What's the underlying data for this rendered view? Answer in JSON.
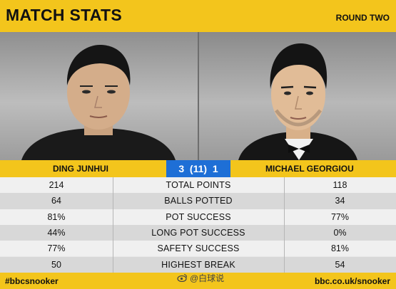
{
  "header": {
    "title": "MATCH STATS",
    "round": "ROUND TWO"
  },
  "players": {
    "left": {
      "name": "DING JUNHUI"
    },
    "right": {
      "name": "MICHAEL GEORGIOU"
    }
  },
  "score": "3  (11)  1",
  "stats": [
    {
      "label": "TOTAL POINTS",
      "left": "214",
      "right": "118"
    },
    {
      "label": "BALLS POTTED",
      "left": "64",
      "right": "34"
    },
    {
      "label": "POT SUCCESS",
      "left": "81%",
      "right": "77%"
    },
    {
      "label": "LONG POT SUCCESS",
      "left": "44%",
      "right": "0%"
    },
    {
      "label": "SAFETY SUCCESS",
      "left": "77%",
      "right": "81%"
    },
    {
      "label": "HIGHEST BREAK",
      "left": "50",
      "right": "54"
    }
  ],
  "footer": {
    "hashtag": "#bbcsnooker",
    "url": "bbc.co.uk/snooker"
  },
  "watermark": "@白球说",
  "colors": {
    "accent": "#f3c51c",
    "score_bg": "#1e6fd6"
  }
}
